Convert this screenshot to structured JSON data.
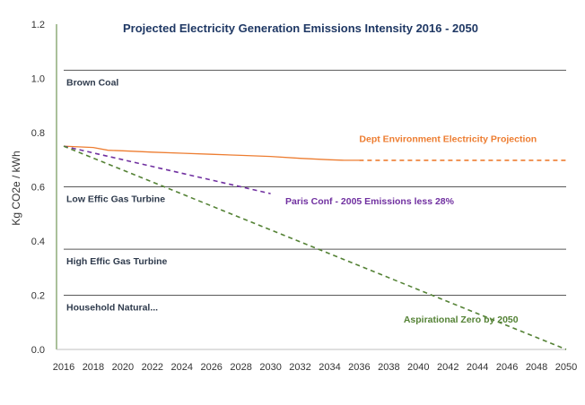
{
  "chart_data": {
    "type": "line",
    "title": "Projected Electricity Generation Emissions Intensity 2016 - 2050",
    "xlabel": "",
    "ylabel": "Kg CO2e / kWh",
    "xlim": [
      2016,
      2050
    ],
    "ylim": [
      0.0,
      1.2
    ],
    "x_ticks": [
      "2016",
      "2018",
      "2020",
      "2022",
      "2024",
      "2026",
      "2028",
      "2030",
      "2032",
      "2034",
      "2036",
      "2038",
      "2040",
      "2042",
      "2044",
      "2046",
      "2048",
      "2050"
    ],
    "y_ticks": [
      "0.0",
      "0.2",
      "0.4",
      "0.6",
      "0.8",
      "1.0",
      "1.2"
    ],
    "grid": false,
    "reference_lines": [
      {
        "name": "Brown Coal",
        "value": 1.03,
        "color": "#595959"
      },
      {
        "name": "Low Effic Gas Turbine",
        "value": 0.6,
        "color": "#595959"
      },
      {
        "name": "High Effic Gas Turbine",
        "value": 0.37,
        "color": "#595959"
      },
      {
        "name": "Household Natural...",
        "value": 0.2,
        "color": "#595959"
      }
    ],
    "series": [
      {
        "name": "Dept Environment Electricity Projection",
        "color": "#ed7d31",
        "style": "solid",
        "x": [
          2016,
          2018,
          2019,
          2020,
          2022,
          2024,
          2026,
          2028,
          2030,
          2032,
          2034,
          2035,
          2036
        ],
        "y": [
          0.75,
          0.745,
          0.735,
          0.733,
          0.728,
          0.724,
          0.72,
          0.716,
          0.712,
          0.705,
          0.7,
          0.698,
          0.698
        ]
      },
      {
        "name": "Dept Environment Electricity Projection (extension)",
        "color": "#ed7d31",
        "style": "dashed",
        "x": [
          2036,
          2050
        ],
        "y": [
          0.698,
          0.698
        ]
      },
      {
        "name": "Paris Conf - 2005 Emissions less 28%",
        "color": "#7030a0",
        "style": "dashed",
        "x": [
          2016,
          2030
        ],
        "y": [
          0.75,
          0.575
        ]
      },
      {
        "name": "Aspirational Zero by 2050",
        "color": "#548235",
        "style": "dashed",
        "x": [
          2016,
          2050
        ],
        "y": [
          0.75,
          0.0
        ]
      }
    ],
    "annotations": [
      {
        "text": "Dept Environment Electricity Projection",
        "x": 2036,
        "y": 0.765,
        "color": "#ed7d31"
      },
      {
        "text": "Paris Conf - 2005 Emissions less 28%",
        "x": 2031,
        "y": 0.535,
        "color": "#7030a0"
      },
      {
        "text": "Aspirational Zero by 2050",
        "x": 2039,
        "y": 0.1,
        "color": "#548235"
      }
    ]
  }
}
